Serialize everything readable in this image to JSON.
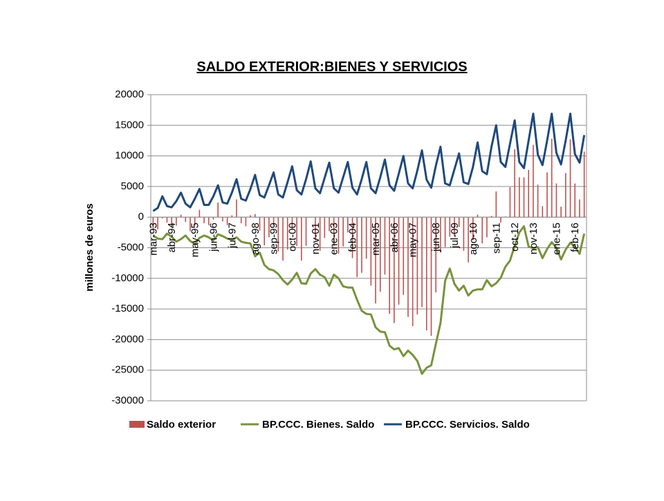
{
  "chart_data": {
    "type": "combo",
    "title": "SALDO EXTERIOR:BIENES Y SERVICIOS",
    "y_label": "millones de euros",
    "categories": [
      "mar-93",
      null,
      null,
      null,
      "abr-94",
      null,
      null,
      null,
      null,
      "may-95",
      null,
      null,
      null,
      "jun-96",
      null,
      null,
      null,
      "jul-97",
      null,
      null,
      null,
      null,
      "ago-98",
      null,
      null,
      null,
      "sep-99",
      null,
      null,
      null,
      "oct-00",
      null,
      null,
      null,
      null,
      "nov-01",
      null,
      null,
      null,
      "ene-03",
      null,
      null,
      null,
      "feb-04",
      null,
      null,
      null,
      null,
      "mar-05",
      null,
      null,
      null,
      "abr-06",
      null,
      null,
      null,
      "may-07",
      null,
      null,
      null,
      null,
      "jun-08",
      null,
      null,
      null,
      "jul-09",
      null,
      null,
      null,
      "ago-10",
      null,
      null,
      null,
      null,
      "sep-11",
      null,
      null,
      null,
      "oct-12",
      null,
      null,
      null,
      "nov-13",
      null,
      null,
      null,
      null,
      "ene-15",
      null,
      null,
      null,
      "feb-16",
      null,
      null
    ],
    "ylim": [
      -30000,
      20000
    ],
    "yticks": [
      -30000,
      -25000,
      -20000,
      -15000,
      -10000,
      -5000,
      0,
      5000,
      10000,
      15000,
      20000
    ],
    "grid": true,
    "legend": "bottom",
    "series": [
      {
        "name": "Saldo exterior",
        "type": "bar",
        "color": "#c0504d",
        "values": [
          -2000,
          -2000,
          -200,
          -900,
          -1600,
          -1400,
          400,
          -800,
          -2300,
          -1400,
          1200,
          -1000,
          -1300,
          -400,
          2400,
          -700,
          -1300,
          300,
          2900,
          -1000,
          -1500,
          300,
          500,
          -2200,
          -4600,
          -3300,
          -1400,
          -5600,
          -7100,
          -5300,
          -1900,
          -4700,
          -7100,
          -4700,
          -100,
          -3800,
          -5500,
          -3400,
          -2300,
          -4700,
          -6000,
          -4800,
          -2500,
          -6700,
          -9800,
          -9100,
          -6800,
          -11200,
          -14100,
          -12200,
          -9400,
          -15800,
          -17300,
          -14300,
          -12700,
          -16300,
          -17800,
          -15900,
          -14700,
          -18500,
          -19400,
          -12300,
          -5800,
          -4900,
          -3200,
          -3100,
          -1600,
          -5500,
          -7400,
          -3800,
          400,
          -4300,
          -3300,
          200,
          4200,
          -900,
          100,
          4900,
          11100,
          6500,
          6500,
          7700,
          11800,
          5300,
          1800,
          7300,
          12800,
          5500,
          1700,
          7200,
          12700,
          5500,
          2900,
          10700
        ]
      },
      {
        "name": "BP.CCC. Bienes. Saldo",
        "type": "line",
        "color": "#77933c",
        "values": [
          -3000,
          -3500,
          -3600,
          -2700,
          -3200,
          -4000,
          -3600,
          -3000,
          -3900,
          -4400,
          -3400,
          -3000,
          -3300,
          -3800,
          -2800,
          -3100,
          -3500,
          -3700,
          -3300,
          -4000,
          -4200,
          -4300,
          -6400,
          -5800,
          -7800,
          -8500,
          -8700,
          -9300,
          -10300,
          -11000,
          -10200,
          -9100,
          -10800,
          -10900,
          -9200,
          -8500,
          -9400,
          -9800,
          -11200,
          -9400,
          -10000,
          -11300,
          -11500,
          -11500,
          -13500,
          -15300,
          -15800,
          -15900,
          -18000,
          -18700,
          -18800,
          -21000,
          -21600,
          -21400,
          -22700,
          -21800,
          -22500,
          -23500,
          -25600,
          -24600,
          -24200,
          -20700,
          -17300,
          -10400,
          -8400,
          -10900,
          -12000,
          -11200,
          -12800,
          -12000,
          -11800,
          -11800,
          -10300,
          -11300,
          -10800,
          -9900,
          -8100,
          -7100,
          -4700,
          -2500,
          -1500,
          -4800,
          -5100,
          -4900,
          -6700,
          -5200,
          -4100,
          -5000,
          -6900,
          -5300,
          -4200,
          -4800,
          -6000,
          -2700
        ]
      },
      {
        "name": "BP.CCC. Servicios. Saldo",
        "type": "line",
        "color": "#1f497d",
        "values": [
          1000,
          1500,
          3400,
          1800,
          1600,
          2600,
          4000,
          2200,
          1600,
          3000,
          4600,
          2000,
          2000,
          3400,
          5200,
          2400,
          2200,
          4000,
          6200,
          3000,
          2700,
          4600,
          6900,
          3600,
          3200,
          5200,
          7300,
          3700,
          3200,
          5700,
          8300,
          4400,
          3700,
          6200,
          9100,
          4700,
          3900,
          6400,
          8900,
          4700,
          4000,
          6500,
          9000,
          4800,
          3700,
          6200,
          9000,
          4700,
          3900,
          6500,
          9400,
          5200,
          4300,
          7100,
          10000,
          5500,
          4700,
          7600,
          10900,
          6100,
          4800,
          8400,
          11500,
          5500,
          5200,
          7800,
          10400,
          5700,
          5400,
          8200,
          12200,
          7500,
          7000,
          11500,
          15000,
          9000,
          8200,
          12000,
          15800,
          9000,
          8000,
          12500,
          16900,
          10200,
          8500,
          12500,
          16900,
          10500,
          8600,
          12500,
          16900,
          10300,
          8900,
          13400
        ]
      }
    ]
  }
}
